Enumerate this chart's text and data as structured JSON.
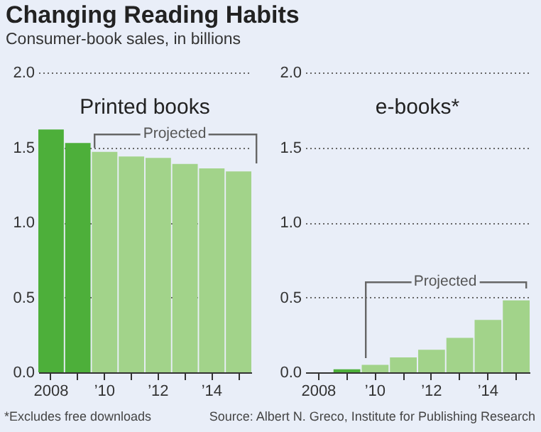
{
  "chart_data": [
    {
      "type": "bar",
      "title": "Changing Reading Habits",
      "subtitle": "Consumer-book sales, in billions",
      "xlabel": "Printed books",
      "categories": [
        "2008",
        null,
        "’10",
        null,
        "’12",
        null,
        "’14",
        null
      ],
      "values": [
        1.62,
        1.53,
        1.47,
        1.44,
        1.43,
        1.39,
        1.36,
        1.34
      ],
      "colors": [
        "#4daf3a",
        "#4daf3a",
        "#a2d38a",
        "#a2d38a",
        "#a2d38a",
        "#a2d38a",
        "#a2d38a",
        "#a2d38a"
      ],
      "ylim": [
        0,
        2
      ],
      "yticks": [
        {
          "value": 0,
          "label": "0.0"
        },
        {
          "value": 0.5,
          "label": "0.5"
        },
        {
          "value": 1,
          "label": "1.0"
        },
        {
          "value": 1.5,
          "label": "1.5"
        },
        {
          "value": 2,
          "label": "2.0"
        }
      ],
      "grid": "y",
      "annotations": [
        "Projected",
        "*Excludes free downloads"
      ]
    },
    {
      "type": "bar",
      "xlabel": "e-books*",
      "categories": [
        "2008",
        null,
        "’10",
        null,
        "’12",
        null,
        "’14",
        null
      ],
      "values": [
        0.0,
        0.02,
        0.05,
        0.1,
        0.15,
        0.23,
        0.35,
        0.48
      ],
      "colors": [
        "#4daf3a",
        "#4daf3a",
        "#a2d38a",
        "#a2d38a",
        "#a2d38a",
        "#a2d38a",
        "#a2d38a",
        "#a2d38a"
      ],
      "ylim": [
        0,
        2
      ],
      "yticks": [
        {
          "value": 0,
          "label": "0.0"
        },
        {
          "value": 0.5,
          "label": "0.5"
        },
        {
          "value": 1,
          "label": "1.0"
        },
        {
          "value": 1.5,
          "label": "1.5"
        },
        {
          "value": 2,
          "label": "2.0"
        }
      ],
      "grid": "y",
      "annotations": [
        "Projected",
        "Source: Albert N. Greco, Institute for Publishing Research"
      ]
    }
  ]
}
